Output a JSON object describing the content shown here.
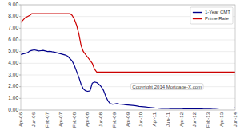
{
  "chart_data": {
    "type": "line",
    "annotation": "Copyright 2014 Mortgage-X.com",
    "categories": [
      "Apr-06",
      null,
      null,
      null,
      null,
      null,
      "Jun-06",
      null,
      null,
      null,
      null,
      null,
      "Feb-07",
      null,
      null,
      null,
      null,
      null,
      "Apr-07",
      null,
      null,
      null,
      null,
      null,
      "Feb-08",
      null,
      null,
      null,
      null,
      null,
      "Apr-08",
      null,
      null,
      null,
      null,
      null,
      "Jun-08",
      null,
      null,
      null,
      null,
      null,
      "Feb-09",
      null,
      null,
      null,
      null,
      null,
      "Apr-09",
      null,
      null,
      null,
      null,
      null,
      "Jun-10",
      null,
      null,
      null,
      null,
      null,
      "Apr-11",
      null,
      null,
      null,
      null,
      null,
      "Jun-11",
      null,
      null,
      null,
      null,
      null,
      "Apr-12",
      null,
      null,
      null,
      null,
      null,
      "Jun-12",
      null,
      null,
      null,
      null,
      null,
      "Feb-13",
      null,
      null,
      null,
      null,
      null,
      "Apr-13",
      null,
      null,
      null,
      null,
      null,
      "Jun-14"
    ],
    "series": [
      {
        "name": "1-Year CMT",
        "color": "#00008b",
        "values": [
          4.75,
          4.8,
          4.85,
          4.9,
          5.05,
          5.1,
          5.15,
          5.1,
          5.05,
          5.08,
          5.1,
          5.05,
          5.0,
          5.02,
          4.98,
          4.95,
          4.9,
          4.85,
          4.8,
          4.75,
          4.7,
          4.6,
          4.4,
          4.2,
          3.8,
          3.3,
          2.8,
          2.2,
          1.8,
          1.65,
          1.6,
          1.65,
          2.3,
          2.4,
          2.35,
          2.2,
          2.0,
          1.7,
          1.2,
          0.8,
          0.55,
          0.5,
          0.52,
          0.55,
          0.52,
          0.5,
          0.48,
          0.45,
          0.44,
          0.42,
          0.4,
          0.38,
          0.35,
          0.32,
          0.3,
          0.28,
          0.26,
          0.24,
          0.22,
          0.2,
          0.18,
          0.17,
          0.16,
          0.15,
          0.15,
          0.14,
          0.14,
          0.13,
          0.13,
          0.12,
          0.12,
          0.12,
          0.12,
          0.11,
          0.11,
          0.11,
          0.11,
          0.11,
          0.11,
          0.11,
          0.11,
          0.11,
          0.12,
          0.12,
          0.13,
          0.13,
          0.14,
          0.15,
          0.16,
          0.17,
          0.17,
          0.17,
          0.17,
          0.17,
          0.17,
          0.17,
          0.18
        ]
      },
      {
        "name": "Prime Rate",
        "color": "#cc0000",
        "values": [
          7.5,
          7.7,
          7.9,
          8.0,
          8.1,
          8.25,
          8.25,
          8.25,
          8.25,
          8.25,
          8.25,
          8.25,
          8.25,
          8.25,
          8.25,
          8.25,
          8.25,
          8.25,
          8.25,
          8.25,
          8.25,
          8.25,
          8.25,
          8.1,
          7.75,
          7.25,
          6.5,
          5.5,
          5.0,
          4.75,
          4.5,
          4.25,
          4.0,
          3.5,
          3.25,
          3.25,
          3.25,
          3.25,
          3.25,
          3.25,
          3.25,
          3.25,
          3.25,
          3.25,
          3.25,
          3.25,
          3.25,
          3.25,
          3.25,
          3.25,
          3.25,
          3.25,
          3.25,
          3.25,
          3.25,
          3.25,
          3.25,
          3.25,
          3.25,
          3.25,
          3.25,
          3.25,
          3.25,
          3.25,
          3.25,
          3.25,
          3.25,
          3.25,
          3.25,
          3.25,
          3.25,
          3.25,
          3.25,
          3.25,
          3.25,
          3.25,
          3.25,
          3.25,
          3.25,
          3.25,
          3.25,
          3.25,
          3.25,
          3.25,
          3.25,
          3.25,
          3.25,
          3.25,
          3.25,
          3.25,
          3.25,
          3.25,
          3.25,
          3.25,
          3.25,
          3.25,
          3.25
        ]
      }
    ],
    "ylim": [
      0.0,
      9.0
    ],
    "yticks": [
      {
        "value": 0.0,
        "label": "0.00"
      },
      {
        "value": 1.0,
        "label": "1.00"
      },
      {
        "value": 2.0,
        "label": "2.00"
      },
      {
        "value": 3.0,
        "label": "3.00"
      },
      {
        "value": 4.0,
        "label": "4.00"
      },
      {
        "value": 5.0,
        "label": "5.00"
      },
      {
        "value": 6.0,
        "label": "6.00"
      },
      {
        "value": 7.0,
        "label": "7.00"
      },
      {
        "value": 8.0,
        "label": "8.00"
      },
      {
        "value": 9.0,
        "label": "9.00"
      }
    ],
    "grid": true,
    "legend": "upper right"
  }
}
